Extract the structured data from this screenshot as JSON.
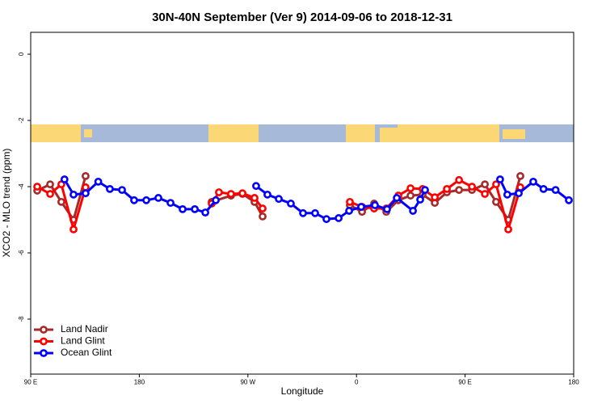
{
  "chart_data": {
    "type": "line",
    "title": "30N-40N September (Ver 9)   2014-09-06 to 2018-12-31",
    "xlabel": "Longitude",
    "ylabel": "XCO2 - MLO trend (ppm)",
    "xlim": [
      90,
      540
    ],
    "ylim": [
      -9.66,
      0.66
    ],
    "xticks": [
      {
        "value": 90,
        "label": "90 E"
      },
      180,
      {
        "value": 270,
        "label": "90 W"
      },
      {
        "value": 360,
        "label": "0"
      },
      {
        "value": 450,
        "label": "90 E"
      },
      {
        "value": 540,
        "label": "180"
      }
    ],
    "yticks": [
      0,
      -2,
      -4,
      -6,
      -8
    ],
    "legend": "bottom-left",
    "series": [
      {
        "name": "Land Nadir",
        "color": "#a52a2a",
        "x": [
          95.4,
          106.1,
          115.4,
          125.5,
          135.5,
          null,
          240,
          256,
          265.5,
          275.5,
          282.2,
          null,
          354.5,
          364.6,
          374.6,
          384.7,
          394.7,
          404.8,
          414.8,
          424.9,
          434.9,
          445,
          455.7,
          466.4,
          475.7,
          485.8,
          495.8
        ],
        "values": [
          -4.12,
          -3.93,
          -4.46,
          -5.0,
          -3.68,
          null,
          -4.46,
          -4.27,
          -4.22,
          -4.46,
          -4.9,
          null,
          -4.56,
          -4.76,
          -4.51,
          -4.76,
          -4.41,
          -4.27,
          -4.24,
          -4.49,
          -4.17,
          -4.1,
          -4.1,
          -3.93,
          -4.46,
          -5.0,
          -3.68
        ]
      },
      {
        "name": "Land Glint",
        "color": "#ff0000",
        "x": [
          95.4,
          106.1,
          115.4,
          125.5,
          135.5,
          null,
          240,
          246,
          256,
          265.5,
          275.5,
          282.2,
          null,
          354.5,
          364.6,
          374.6,
          384.7,
          394.7,
          404.8,
          414.8,
          424.9,
          434.9,
          445,
          455.7,
          466.4,
          475.7,
          485.8,
          495.8
        ],
        "values": [
          -4.0,
          -4.22,
          -3.93,
          -5.29,
          -4.02,
          null,
          -4.51,
          -4.17,
          -4.22,
          -4.2,
          -4.34,
          -4.66,
          null,
          -4.46,
          -4.61,
          -4.66,
          -4.66,
          -4.27,
          -4.05,
          -4.07,
          -4.32,
          -4.07,
          -3.8,
          -4.0,
          -4.22,
          -3.93,
          -5.29,
          -4.02
        ]
      },
      {
        "name": "Ocean Glint",
        "color": "#0000ff",
        "x": [
          118,
          125.5,
          135.5,
          146,
          155.6,
          165.7,
          175.7,
          185.8,
          195.8,
          205.9,
          215.9,
          226,
          234.7,
          243.4,
          null,
          276.8,
          286.2,
          295.6,
          305.6,
          315.7,
          325.7,
          335.1,
          345.2,
          353.9,
          363.9,
          375.3,
          385.3,
          393.4,
          406.8,
          412.8,
          416.8,
          null,
          479,
          485,
          494.5,
          506.5,
          515,
          525,
          536
        ],
        "values": [
          -3.78,
          -4.24,
          -4.2,
          -3.85,
          -4.07,
          -4.1,
          -4.41,
          -4.41,
          -4.34,
          -4.49,
          -4.68,
          -4.68,
          -4.78,
          -4.41,
          null,
          -3.98,
          -4.24,
          -4.37,
          -4.51,
          -4.8,
          -4.8,
          -4.98,
          -4.95,
          -4.73,
          -4.61,
          -4.56,
          -4.68,
          -4.34,
          -4.73,
          -4.39,
          -4.1,
          null,
          -3.78,
          -4.24,
          -4.2,
          -3.85,
          -4.07,
          -4.1,
          -4.41
        ]
      }
    ]
  }
}
